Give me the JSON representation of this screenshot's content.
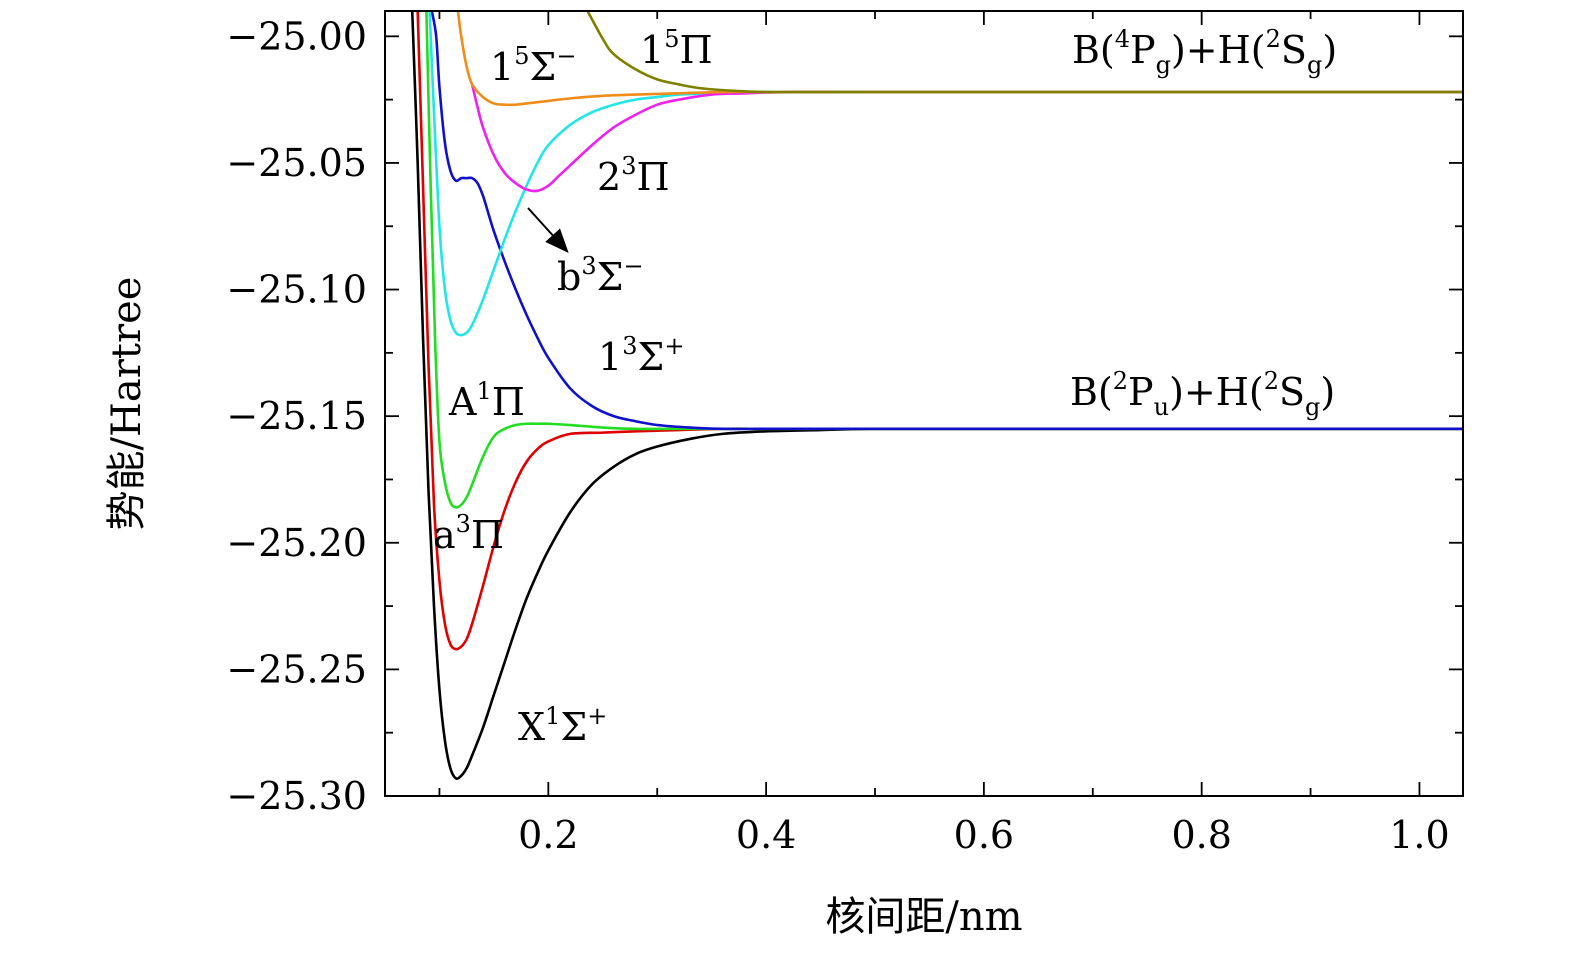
{
  "chart_data": {
    "type": "line",
    "xlabel": "核间距/nm",
    "ylabel": "势能/Hartree",
    "xlim": [
      0.05,
      1.04
    ],
    "ylim": [
      -25.3,
      -24.99
    ],
    "x_ticks": [
      0.2,
      0.4,
      0.6,
      0.8,
      1.0
    ],
    "x_tick_labels": [
      "0.2",
      "0.4",
      "0.6",
      "0.8",
      "1.0"
    ],
    "y_ticks": [
      -25.3,
      -25.25,
      -25.2,
      -25.15,
      -25.1,
      -25.05,
      -25.0
    ],
    "y_tick_labels": [
      "−25.30",
      "−25.25",
      "−25.20",
      "−25.15",
      "−25.10",
      "−25.05",
      "−25.00"
    ],
    "grid": false,
    "asymptotes": [
      {
        "label": "B(4Pg)+H(2Sg)",
        "parts": {
          "prefix": "B(",
          "sup1": "4",
          "mid1": "P",
          "sub1": "g",
          "mid2": ")+H(",
          "sup2": "2",
          "mid3": "S",
          "sub2": "g",
          "end": ")"
        },
        "energy": -25.022
      },
      {
        "label": "B(2Pu)+H(2Sg)",
        "parts": {
          "prefix": "B(",
          "sup1": "2",
          "mid1": "P",
          "sub1": "u",
          "mid2": ")+H(",
          "sup2": "2",
          "mid3": "S",
          "sub2": "g",
          "end": ")"
        },
        "energy": -25.155
      }
    ],
    "series": [
      {
        "name": "X1Σ+",
        "label": {
          "base": "X",
          "sup1": "1",
          "sym": "Σ",
          "sup2": "+"
        },
        "color": "#000000",
        "x": [
          0.075,
          0.08,
          0.085,
          0.09,
          0.095,
          0.1,
          0.105,
          0.11,
          0.115,
          0.12,
          0.125,
          0.13,
          0.14,
          0.15,
          0.16,
          0.17,
          0.18,
          0.19,
          0.2,
          0.22,
          0.24,
          0.26,
          0.28,
          0.3,
          0.33,
          0.36,
          0.4,
          0.45,
          0.5,
          0.6,
          0.8,
          1.04
        ],
        "y": [
          -24.99,
          -25.05,
          -25.12,
          -25.18,
          -25.225,
          -25.258,
          -25.278,
          -25.289,
          -25.293,
          -25.292,
          -25.289,
          -25.284,
          -25.273,
          -25.26,
          -25.247,
          -25.234,
          -25.222,
          -25.212,
          -25.203,
          -25.188,
          -25.177,
          -25.17,
          -25.165,
          -25.162,
          -25.159,
          -25.157,
          -25.156,
          -25.1555,
          -25.155,
          -25.155,
          -25.155,
          -25.155
        ]
      },
      {
        "name": "a3Π",
        "label": {
          "base": "a",
          "sup1": "3",
          "sym": "Π",
          "sup2": ""
        },
        "color": "#e00000",
        "x": [
          0.08,
          0.085,
          0.09,
          0.095,
          0.1,
          0.105,
          0.11,
          0.115,
          0.12,
          0.125,
          0.13,
          0.14,
          0.15,
          0.16,
          0.17,
          0.18,
          0.19,
          0.2,
          0.22,
          0.25,
          0.28,
          0.32,
          0.36,
          0.4,
          0.45,
          0.6,
          1.04
        ],
        "y": [
          -24.99,
          -25.06,
          -25.13,
          -25.185,
          -25.215,
          -25.232,
          -25.24,
          -25.242,
          -25.241,
          -25.238,
          -25.232,
          -25.217,
          -25.201,
          -25.187,
          -25.176,
          -25.168,
          -25.163,
          -25.16,
          -25.157,
          -25.1565,
          -25.156,
          -25.1555,
          -25.155,
          -25.155,
          -25.155,
          -25.155,
          -25.155
        ]
      },
      {
        "name": "A1Π",
        "label": {
          "base": "A",
          "sup1": "1",
          "sym": "Π",
          "sup2": ""
        },
        "color": "#22dd22",
        "x": [
          0.088,
          0.092,
          0.096,
          0.1,
          0.105,
          0.11,
          0.115,
          0.12,
          0.125,
          0.13,
          0.14,
          0.15,
          0.16,
          0.17,
          0.18,
          0.19,
          0.2,
          0.22,
          0.25,
          0.28,
          0.32,
          0.36,
          0.4,
          0.45,
          0.6,
          1.04
        ],
        "y": [
          -24.99,
          -25.06,
          -25.12,
          -25.16,
          -25.176,
          -25.184,
          -25.186,
          -25.185,
          -25.182,
          -25.177,
          -25.166,
          -25.158,
          -25.155,
          -25.1535,
          -25.153,
          -25.153,
          -25.153,
          -25.1535,
          -25.1545,
          -25.155,
          -25.155,
          -25.155,
          -25.155,
          -25.155,
          -25.155,
          -25.155
        ]
      },
      {
        "name": "13Σ+",
        "label": {
          "base": "1",
          "sup1": "3",
          "sym": "Σ",
          "sup2": "+"
        },
        "color": "#1010cc",
        "x": [
          0.093,
          0.097,
          0.1,
          0.105,
          0.11,
          0.115,
          0.12,
          0.125,
          0.13,
          0.135,
          0.14,
          0.145,
          0.15,
          0.16,
          0.17,
          0.18,
          0.19,
          0.2,
          0.22,
          0.24,
          0.26,
          0.28,
          0.3,
          0.33,
          0.36,
          0.4,
          0.45,
          0.5,
          0.6,
          1.04
        ],
        "y": [
          -24.99,
          -25.0,
          -25.02,
          -25.042,
          -25.053,
          -25.057,
          -25.056,
          -25.056,
          -25.056,
          -25.058,
          -25.063,
          -25.07,
          -25.077,
          -25.089,
          -25.1,
          -25.11,
          -25.119,
          -25.127,
          -25.139,
          -25.146,
          -25.15,
          -25.152,
          -25.1535,
          -25.1545,
          -25.155,
          -25.155,
          -25.155,
          -25.155,
          -25.155,
          -25.155
        ]
      },
      {
        "name": "b3Σ−",
        "label": {
          "base": "b",
          "sup1": "3",
          "sym": "Σ",
          "sup2": "−"
        },
        "color": "#22e6e6",
        "x": [
          0.091,
          0.095,
          0.1,
          0.105,
          0.11,
          0.115,
          0.12,
          0.125,
          0.13,
          0.14,
          0.15,
          0.16,
          0.17,
          0.18,
          0.19,
          0.2,
          0.22,
          0.24,
          0.26,
          0.28,
          0.3,
          0.32,
          0.35,
          0.38,
          0.42,
          0.5,
          1.04
        ],
        "y": [
          -24.99,
          -25.03,
          -25.075,
          -25.1,
          -25.112,
          -25.117,
          -25.118,
          -25.117,
          -25.114,
          -25.104,
          -25.092,
          -25.08,
          -25.069,
          -25.059,
          -25.05,
          -25.043,
          -25.035,
          -25.03,
          -25.027,
          -25.025,
          -25.024,
          -25.023,
          -25.0225,
          -25.022,
          -25.022,
          -25.022,
          -25.022
        ]
      },
      {
        "name": "23Π",
        "label": {
          "base": "2",
          "sup1": "3",
          "sym": "Π",
          "sup2": ""
        },
        "color": "#ee22ee",
        "x": [
          0.13,
          0.135,
          0.14,
          0.15,
          0.16,
          0.17,
          0.18,
          0.19,
          0.2,
          0.21,
          0.22,
          0.24,
          0.26,
          0.28,
          0.3,
          0.32,
          0.35,
          0.38,
          0.42,
          0.5,
          1.04
        ],
        "y": [
          -25.019,
          -25.028,
          -25.036,
          -25.047,
          -25.054,
          -25.058,
          -25.0605,
          -25.061,
          -25.059,
          -25.055,
          -25.051,
          -25.043,
          -25.036,
          -25.031,
          -25.027,
          -25.025,
          -25.023,
          -25.0225,
          -25.022,
          -25.022,
          -25.022
        ]
      },
      {
        "name": "15Σ−",
        "label": {
          "base": "1",
          "sup1": "5",
          "sym": "Σ",
          "sup2": "−"
        },
        "color": "#f08c1a",
        "x": [
          0.117,
          0.12,
          0.125,
          0.13,
          0.14,
          0.15,
          0.16,
          0.17,
          0.18,
          0.2,
          0.22,
          0.25,
          0.28,
          0.32,
          0.36,
          0.4,
          0.5,
          1.04
        ],
        "y": [
          -24.99,
          -25.0,
          -25.012,
          -25.019,
          -25.024,
          -25.0265,
          -25.027,
          -25.027,
          -25.0265,
          -25.0255,
          -25.0245,
          -25.0235,
          -25.023,
          -25.0225,
          -25.022,
          -25.022,
          -25.022,
          -25.022
        ]
      },
      {
        "name": "15Π",
        "label": {
          "base": "1",
          "sup1": "5",
          "sym": "Π",
          "sup2": ""
        },
        "color": "#808000",
        "x": [
          0.236,
          0.25,
          0.26,
          0.28,
          0.3,
          0.32,
          0.34,
          0.37,
          0.4,
          0.45,
          0.5,
          0.6,
          1.04
        ],
        "y": [
          -24.99,
          -25.001,
          -25.007,
          -25.013,
          -25.017,
          -25.019,
          -25.0205,
          -25.0215,
          -25.022,
          -25.022,
          -25.022,
          -25.022,
          -25.022
        ]
      }
    ],
    "annotations": [
      {
        "text": "b3Σ−",
        "arrow": true,
        "points_to_x": 0.19,
        "points_to_y": -25.061
      }
    ]
  }
}
